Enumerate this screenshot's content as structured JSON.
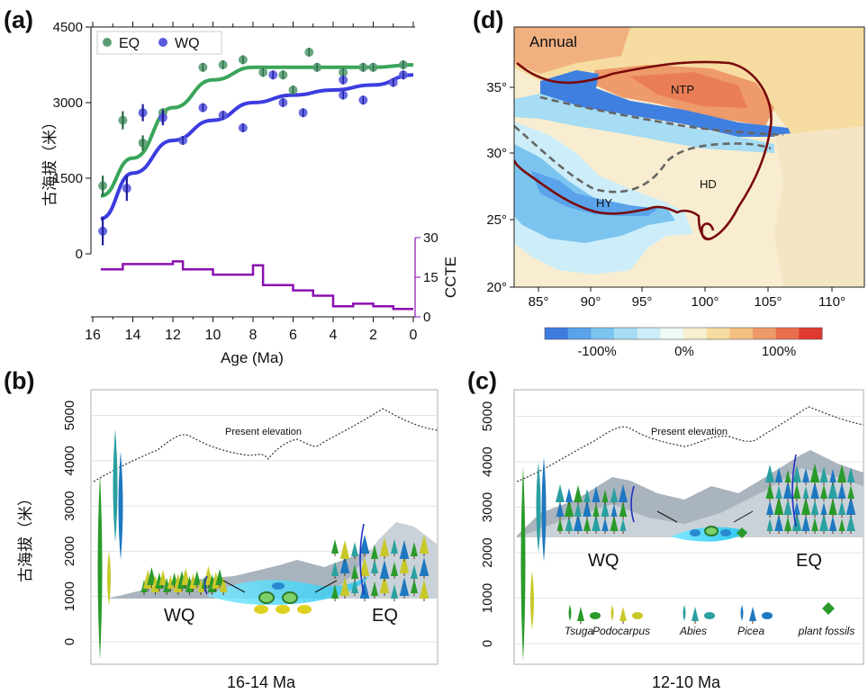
{
  "colors": {
    "eq": "#3aa55a",
    "eq_point": "#5a9d74",
    "wq": "#3c3ce0",
    "wq_point": "#5a5adf",
    "ccte": "#8a10b0",
    "dark_red": "#7a0a0a",
    "tsuga": "#2a9a2a",
    "podocarpus": "#c8c828",
    "abies": "#2aa0a0",
    "picea": "#1e78c0"
  },
  "panels": {
    "a": {
      "label": "(a)"
    },
    "b": {
      "label": "(b)",
      "present": "Present elevation",
      "wq": "WQ",
      "eq": "EQ",
      "time": "16-14 Ma"
    },
    "c": {
      "label": "(c)",
      "present": "Present elevation",
      "wq": "WQ",
      "eq": "EQ",
      "time": "12-10 Ma"
    },
    "d": {
      "label": "(d)",
      "season": "Annual",
      "regions": [
        "NTP",
        "HD",
        "HY"
      ]
    }
  },
  "legend_species": [
    {
      "name": "Tsuga",
      "icon": "tsuga-icon"
    },
    {
      "name": "Podocarpus",
      "icon": "podocarpus-icon"
    },
    {
      "name": "Abies",
      "icon": "abies-icon"
    },
    {
      "name": "Picea",
      "icon": "picea-icon"
    },
    {
      "name": "plant fossils",
      "icon": "plant-fossil-icon"
    }
  ],
  "chart_data": [
    {
      "id": "a",
      "type": "scatter",
      "xlabel": "Age (Ma)",
      "ylabel": "古海拔（米）",
      "y2label": "CCTE",
      "xlim": [
        16,
        0
      ],
      "ylim": [
        0,
        4500
      ],
      "y2lim": [
        0,
        30
      ],
      "xticks": [
        16,
        14,
        12,
        10,
        8,
        6,
        4,
        2,
        0
      ],
      "yticks": [
        0,
        1500,
        3000,
        4500
      ],
      "y2ticks": [
        0,
        15,
        30
      ],
      "legend": {
        "position": "top-left",
        "entries": [
          "EQ",
          "WQ"
        ]
      },
      "series": [
        {
          "name": "EQ",
          "points": [
            [
              15.5,
              1350
            ],
            [
              14.5,
              2650
            ],
            [
              13.5,
              2200
            ],
            [
              12.5,
              2800
            ],
            [
              10.5,
              3700
            ],
            [
              9.5,
              3750
            ],
            [
              8.5,
              3850
            ],
            [
              7.5,
              3600
            ],
            [
              6.5,
              3550
            ],
            [
              6,
              3250
            ],
            [
              5.2,
              4000
            ],
            [
              4.8,
              3700
            ],
            [
              3.5,
              3600
            ],
            [
              2.5,
              3700
            ],
            [
              2,
              3700
            ],
            [
              0.5,
              3750
            ]
          ],
          "err": [
            [
              15.5,
              200
            ],
            [
              14.5,
              180
            ],
            [
              13.5,
              150
            ]
          ],
          "fit": [
            [
              15.6,
              1150
            ],
            [
              14,
              1900
            ],
            [
              12,
              2900
            ],
            [
              10,
              3450
            ],
            [
              8,
              3700
            ],
            [
              6,
              3700
            ],
            [
              4,
              3700
            ],
            [
              2,
              3700
            ],
            [
              0,
              3750
            ]
          ]
        },
        {
          "name": "WQ",
          "points": [
            [
              15.5,
              450
            ],
            [
              14.3,
              1300
            ],
            [
              13.5,
              2800
            ],
            [
              12.5,
              2700
            ],
            [
              11.5,
              2250
            ],
            [
              10.5,
              2900
            ],
            [
              9.5,
              2750
            ],
            [
              8.5,
              2500
            ],
            [
              7,
              3550
            ],
            [
              6.5,
              3000
            ],
            [
              5.5,
              2800
            ],
            [
              3.5,
              3150
            ],
            [
              3.5,
              3450
            ],
            [
              2.5,
              3050
            ],
            [
              1,
              3400
            ],
            [
              0.5,
              3550
            ]
          ],
          "err": [
            [
              15.5,
              280
            ],
            [
              14.3,
              250
            ],
            [
              13.5,
              170
            ],
            [
              12.5,
              150
            ]
          ],
          "fit": [
            [
              15.6,
              700
            ],
            [
              14,
              1600
            ],
            [
              12,
              2250
            ],
            [
              10,
              2650
            ],
            [
              8,
              3000
            ],
            [
              6,
              3150
            ],
            [
              4,
              3250
            ],
            [
              2,
              3350
            ],
            [
              0,
              3550
            ]
          ]
        },
        {
          "name": "CCTE",
          "type": "step",
          "steps": [
            [
              15.6,
              18
            ],
            [
              14.5,
              20
            ],
            [
              12,
              21
            ],
            [
              11.5,
              18
            ],
            [
              10,
              16
            ],
            [
              8,
              19.5
            ],
            [
              7.5,
              12
            ],
            [
              6,
              10
            ],
            [
              5,
              8
            ],
            [
              4,
              4
            ],
            [
              3,
              5
            ],
            [
              2,
              4
            ],
            [
              1,
              3
            ],
            [
              0,
              3
            ]
          ]
        }
      ]
    },
    {
      "id": "b",
      "type": "area",
      "ylabel": "古海拔（米）",
      "yticks": [
        0,
        1000,
        2000,
        3000,
        4000,
        5000
      ],
      "ylim": [
        0,
        5500
      ]
    },
    {
      "id": "c",
      "type": "area",
      "yticks": [
        0,
        1000,
        2000,
        3000,
        4000,
        5000
      ],
      "ylim": [
        0,
        5500
      ]
    },
    {
      "id": "d",
      "type": "heatmap",
      "xticks": [
        "85°",
        "90°",
        "95°",
        "100°",
        "105°",
        "110°"
      ],
      "yticks": [
        "20°",
        "25°",
        "30°",
        "35°"
      ],
      "colorbar": {
        "labels": [
          "-100%",
          "0%",
          "100%"
        ],
        "colors": [
          "#3d7be0",
          "#5aa2ea",
          "#7cc4f0",
          "#a6dcf4",
          "#cdeef8",
          "#eef8f4",
          "#f8eed0",
          "#f6dca0",
          "#f3bf80",
          "#ee9a68",
          "#e86e4c",
          "#e03a30"
        ]
      }
    }
  ]
}
